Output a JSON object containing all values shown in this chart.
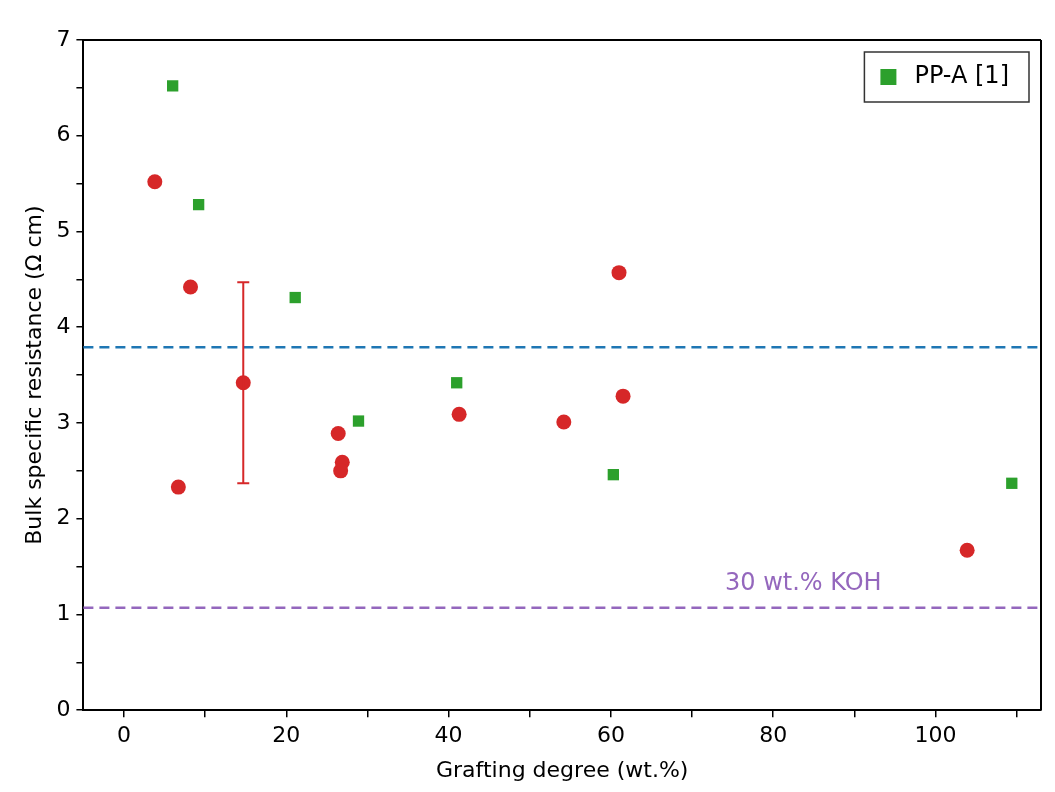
{
  "chart_data": {
    "type": "scatter",
    "xlabel": "Grafting degree (wt.%)",
    "ylabel": "Bulk specific resistance (Ω cm)",
    "xlim": [
      -5,
      113
    ],
    "ylim": [
      0,
      7
    ],
    "xticks": [
      0,
      {
        "value": 10,
        "label": null
      },
      20,
      {
        "value": 30,
        "label": null
      },
      40,
      {
        "value": 50,
        "label": null
      },
      60,
      {
        "value": 70,
        "label": null
      },
      80,
      {
        "value": 90,
        "label": null
      },
      100,
      {
        "value": 110,
        "label": null
      }
    ],
    "yticks": [
      0,
      {
        "value": 0.5,
        "label": null
      },
      1,
      {
        "value": 1.5,
        "label": null
      },
      2,
      {
        "value": 2.5,
        "label": null
      },
      3,
      {
        "value": 3.5,
        "label": null
      },
      4,
      {
        "value": 4.5,
        "label": null
      },
      5,
      {
        "value": 5.5,
        "label": null
      },
      6,
      {
        "value": 6.5,
        "label": null
      },
      7
    ],
    "grid": false,
    "legend": "top right",
    "series": [
      {
        "color": "#d62728",
        "marker": "circle",
        "x": [
          3.8,
          8.2,
          6.7,
          14.7,
          26.4,
          26.9,
          26.7,
          41.3,
          54.2,
          61.0,
          61.5,
          103.9
        ],
        "values": [
          5.52,
          4.42,
          2.33,
          3.42,
          2.89,
          2.59,
          2.5,
          3.09,
          3.01,
          4.57,
          3.28,
          1.67
        ],
        "errors": [
          null,
          null,
          null,
          [
            2.37,
            4.47
          ],
          null,
          null,
          null,
          null,
          null,
          null,
          null,
          null
        ]
      },
      {
        "name": "PP-A [1]",
        "color": "#2ca02c",
        "marker": "square",
        "x": [
          6.0,
          9.2,
          21.1,
          28.9,
          41.0,
          60.3,
          109.4
        ],
        "values": [
          6.52,
          5.28,
          4.31,
          3.02,
          3.42,
          2.46,
          2.37
        ]
      }
    ],
    "ref_lines": [
      {
        "axis": "y",
        "value": 3.79,
        "color": "#1f77b4",
        "line_style": "dashed"
      },
      {
        "axis": "y",
        "value": 1.07,
        "label": "30 wt.% KOH",
        "color": "#9467bd",
        "line_style": "dashed"
      }
    ]
  }
}
